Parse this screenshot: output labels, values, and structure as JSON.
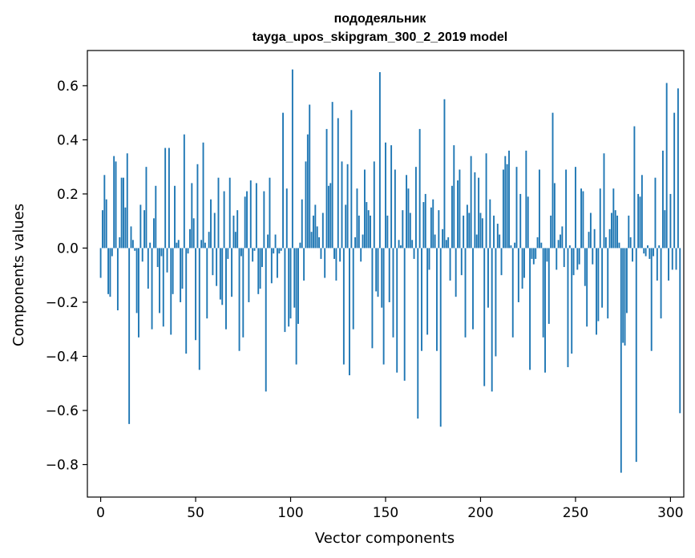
{
  "chart_data": {
    "type": "bar",
    "title": "пододеяльник",
    "subtitle": "tayga_upos_skipgram_300_2_2019 model",
    "xlabel": "Vector components",
    "ylabel": "Components values",
    "xlim": [
      -7,
      307
    ],
    "ylim": [
      -0.92,
      0.73
    ],
    "xticks": [
      0,
      50,
      100,
      150,
      200,
      250,
      300
    ],
    "yticks": [
      -0.8,
      -0.6,
      -0.4,
      -0.2,
      0.0,
      0.2,
      0.4,
      0.6
    ],
    "ytick_labels": [
      "−0.8",
      "−0.6",
      "−0.4",
      "−0.2",
      "0.0",
      "0.2",
      "0.4",
      "0.6"
    ],
    "bar_color": "#1f77b4",
    "values": [
      -0.11,
      0.14,
      0.27,
      0.18,
      -0.17,
      -0.18,
      -0.03,
      0.34,
      0.32,
      -0.23,
      0.04,
      0.26,
      0.26,
      0.15,
      0.35,
      -0.65,
      0.08,
      0.03,
      -0.01,
      -0.24,
      -0.33,
      0.16,
      -0.05,
      0.14,
      0.3,
      -0.15,
      0.02,
      -0.3,
      0.11,
      0.23,
      -0.07,
      -0.24,
      -0.03,
      -0.29,
      0.37,
      -0.09,
      0.37,
      -0.32,
      -0.17,
      0.23,
      0.02,
      0.03,
      -0.2,
      -0.15,
      0.42,
      -0.39,
      -0.02,
      0.07,
      0.24,
      0.11,
      -0.34,
      0.31,
      -0.45,
      0.03,
      0.39,
      0.02,
      -0.26,
      0.06,
      0.18,
      -0.1,
      0.13,
      -0.14,
      0.26,
      -0.19,
      -0.21,
      0.21,
      -0.3,
      -0.04,
      0.26,
      -0.18,
      0.12,
      0.06,
      0.14,
      -0.38,
      -0.03,
      -0.33,
      0.19,
      0.21,
      -0.2,
      0.25,
      -0.05,
      -0.01,
      0.24,
      -0.17,
      -0.15,
      -0.07,
      0.21,
      -0.53,
      0.05,
      0.26,
      -0.13,
      -0.02,
      0.05,
      -0.11,
      -0.02,
      -0.01,
      0.5,
      -0.31,
      0.22,
      -0.29,
      -0.26,
      0.66,
      -0.22,
      -0.43,
      -0.28,
      0.02,
      0.18,
      -0.12,
      0.32,
      0.42,
      0.53,
      0.06,
      0.12,
      0.16,
      0.08,
      0.04,
      -0.04,
      0.13,
      -0.11,
      0.44,
      0.23,
      0.24,
      0.54,
      -0.04,
      -0.12,
      0.48,
      -0.05,
      0.32,
      -0.43,
      0.16,
      0.31,
      -0.47,
      0.51,
      -0.3,
      0.04,
      0.22,
      0.12,
      -0.05,
      0.05,
      0.29,
      0.17,
      0.14,
      0.12,
      -0.37,
      0.32,
      -0.16,
      -0.18,
      0.65,
      -0.22,
      -0.43,
      0.39,
      0.12,
      -0.2,
      0.38,
      -0.33,
      0.29,
      -0.46,
      0.03,
      0.01,
      0.14,
      -0.49,
      0.27,
      0.22,
      0.13,
      0.03,
      -0.04,
      0.3,
      -0.63,
      0.44,
      -0.38,
      0.17,
      0.2,
      -0.32,
      -0.08,
      0.15,
      0.18,
      0.05,
      -0.38,
      0.14,
      -0.66,
      0.07,
      0.55,
      0.03,
      0.04,
      -0.12,
      0.23,
      0.38,
      -0.18,
      0.25,
      0.29,
      -0.1,
      0.12,
      -0.33,
      0.16,
      0.13,
      0.34,
      -0.3,
      0.28,
      0.05,
      0.26,
      0.13,
      0.11,
      -0.51,
      0.35,
      -0.22,
      0.18,
      -0.53,
      0.12,
      -0.4,
      0.09,
      0.05,
      -0.1,
      0.29,
      0.34,
      0.31,
      0.36,
      0.01,
      -0.33,
      0.02,
      0.3,
      -0.2,
      0.2,
      -0.15,
      -0.11,
      0.36,
      0.19,
      -0.45,
      -0.04,
      -0.06,
      -0.04,
      0.04,
      0.29,
      0.02,
      -0.33,
      -0.46,
      -0.05,
      -0.28,
      0.12,
      0.5,
      0.24,
      -0.08,
      0.03,
      0.05,
      0.08,
      -0.07,
      0.29,
      -0.44,
      0.01,
      -0.39,
      -0.1,
      0.3,
      -0.08,
      -0.06,
      0.22,
      0.21,
      -0.14,
      -0.29,
      0.06,
      0.13,
      -0.06,
      0.07,
      -0.32,
      -0.27,
      0.22,
      -0.22,
      0.35,
      0.04,
      -0.26,
      0.07,
      0.13,
      0.22,
      0.14,
      0.12,
      0.02,
      -0.83,
      -0.35,
      -0.36,
      -0.24,
      0.12,
      0.04,
      -0.05,
      0.45,
      -0.79,
      0.2,
      0.19,
      0.27,
      -0.02,
      -0.03,
      0.01,
      -0.04,
      -0.38,
      -0.03,
      0.26,
      -0.12,
      0.01,
      -0.26,
      0.36,
      0.14,
      0.61,
      -0.12,
      0.2,
      -0.08,
      0.5,
      -0.08,
      0.59,
      -0.61
    ]
  }
}
